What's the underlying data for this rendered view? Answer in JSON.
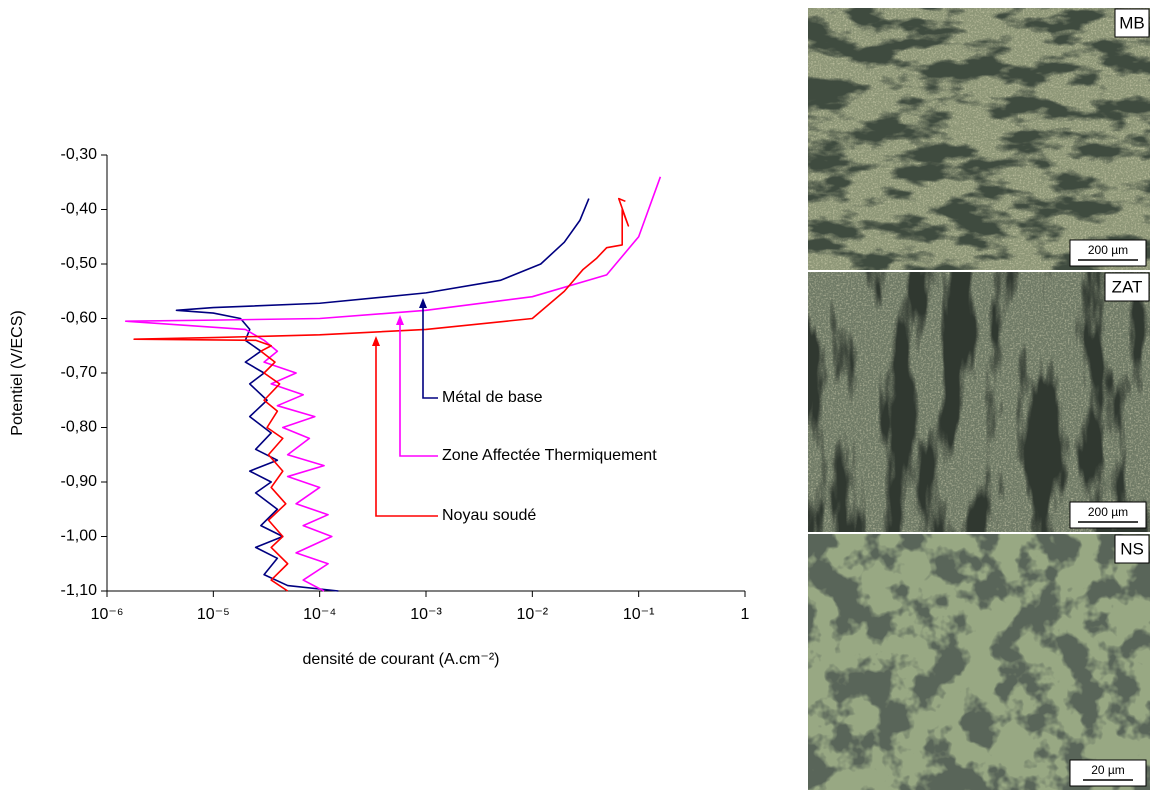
{
  "chart_data": {
    "type": "line",
    "xlabel": "densité de courant (A.cm⁻²)",
    "ylabel": "Potentiel (V/ECS)",
    "xscale": "log",
    "xlim": [
      1e-06,
      1
    ],
    "xticks": [
      {
        "value": 1e-06,
        "label": "10⁻⁶"
      },
      {
        "value": 1e-05,
        "label": "10⁻⁵"
      },
      {
        "value": 0.0001,
        "label": "10⁻⁴"
      },
      {
        "value": 0.001,
        "label": "10⁻³"
      },
      {
        "value": 0.01,
        "label": "10⁻²"
      },
      {
        "value": 0.1,
        "label": "10⁻¹"
      },
      1
    ],
    "ylim": [
      -1.1,
      -0.3
    ],
    "yticks": [
      {
        "value": -1.1,
        "label": "-1,10"
      },
      {
        "value": -1.0,
        "label": "-1,00"
      },
      {
        "value": -0.9,
        "label": "-0,90"
      },
      {
        "value": -0.8,
        "label": "-0,80"
      },
      {
        "value": -0.7,
        "label": "-0,70"
      },
      {
        "value": -0.6,
        "label": "-0,60"
      },
      {
        "value": -0.5,
        "label": "-0,50"
      },
      {
        "value": -0.4,
        "label": "-0,40"
      },
      {
        "value": -0.3,
        "label": "-0,30"
      }
    ],
    "grid": false,
    "series": [
      {
        "name": "Métal de base",
        "color": "#000080",
        "x": [
          0.00015,
          5e-05,
          3e-05,
          4e-05,
          2.5e-05,
          4.5e-05,
          2.8e-05,
          4e-05,
          2.5e-05,
          3.5e-05,
          2.2e-05,
          4e-05,
          2.5e-05,
          3.5e-05,
          2.2e-05,
          3.2e-05,
          2.2e-05,
          3e-05,
          2e-05,
          2.8e-05,
          2e-05,
          2.2e-05,
          1.8e-05,
          1e-05,
          4.5e-06,
          1e-05,
          0.0001,
          0.001,
          0.005,
          0.012,
          0.02,
          0.028,
          0.034
        ],
        "y": [
          -1.1,
          -1.09,
          -1.07,
          -1.04,
          -1.02,
          -1.0,
          -0.98,
          -0.95,
          -0.92,
          -0.9,
          -0.88,
          -0.86,
          -0.84,
          -0.81,
          -0.78,
          -0.75,
          -0.72,
          -0.7,
          -0.68,
          -0.66,
          -0.64,
          -0.62,
          -0.6,
          -0.59,
          -0.585,
          -0.58,
          -0.572,
          -0.553,
          -0.53,
          -0.5,
          -0.46,
          -0.42,
          -0.38
        ]
      },
      {
        "name": "Zone Affectée Thermiquement",
        "color": "#ff00ff",
        "x": [
          0.00011,
          7e-05,
          0.00012,
          6e-05,
          0.00013,
          7e-05,
          0.00012,
          6e-05,
          0.0001,
          5e-05,
          0.00011,
          5e-05,
          8e-05,
          4.5e-05,
          9e-05,
          4e-05,
          7e-05,
          3.5e-05,
          6e-05,
          3e-05,
          4e-05,
          3e-05,
          2e-05,
          1.5e-06,
          1e-05,
          0.0001,
          0.001,
          0.01,
          0.05,
          0.1,
          0.16
        ],
        "y": [
          -1.1,
          -1.08,
          -1.05,
          -1.03,
          -1.0,
          -0.98,
          -0.96,
          -0.94,
          -0.91,
          -0.89,
          -0.87,
          -0.85,
          -0.82,
          -0.8,
          -0.78,
          -0.76,
          -0.74,
          -0.72,
          -0.7,
          -0.68,
          -0.66,
          -0.64,
          -0.62,
          -0.605,
          -0.603,
          -0.6,
          -0.585,
          -0.56,
          -0.52,
          -0.45,
          -0.34
        ]
      },
      {
        "name": "Noyau soudé",
        "color": "#ff0000",
        "x": [
          5e-05,
          3.5e-05,
          5e-05,
          3.5e-05,
          4.5e-05,
          3.3e-05,
          4.8e-05,
          3.5e-05,
          4.5e-05,
          3.3e-05,
          4.5e-05,
          3.2e-05,
          4e-05,
          3e-05,
          4.2e-05,
          3e-05,
          3.8e-05,
          2.8e-05,
          3.5e-05,
          2.5e-05,
          1.8e-06,
          1e-05,
          0.0001,
          0.001,
          0.01,
          0.02,
          0.03,
          0.04,
          0.05,
          0.07,
          0.07,
          0.08,
          0.065,
          0.075
        ],
        "y": [
          -1.1,
          -1.08,
          -1.05,
          -1.02,
          -1.0,
          -0.97,
          -0.94,
          -0.91,
          -0.88,
          -0.85,
          -0.82,
          -0.8,
          -0.77,
          -0.75,
          -0.72,
          -0.7,
          -0.68,
          -0.66,
          -0.65,
          -0.64,
          -0.638,
          -0.635,
          -0.63,
          -0.62,
          -0.6,
          -0.55,
          -0.51,
          -0.49,
          -0.47,
          -0.465,
          -0.4,
          -0.43,
          -0.38,
          -0.385
        ]
      }
    ]
  },
  "micrographs": [
    {
      "label": "MB",
      "scale": "200 µm"
    },
    {
      "label": "ZAT",
      "scale": "200 µm"
    },
    {
      "label": "NS",
      "scale": "20 µm"
    }
  ]
}
